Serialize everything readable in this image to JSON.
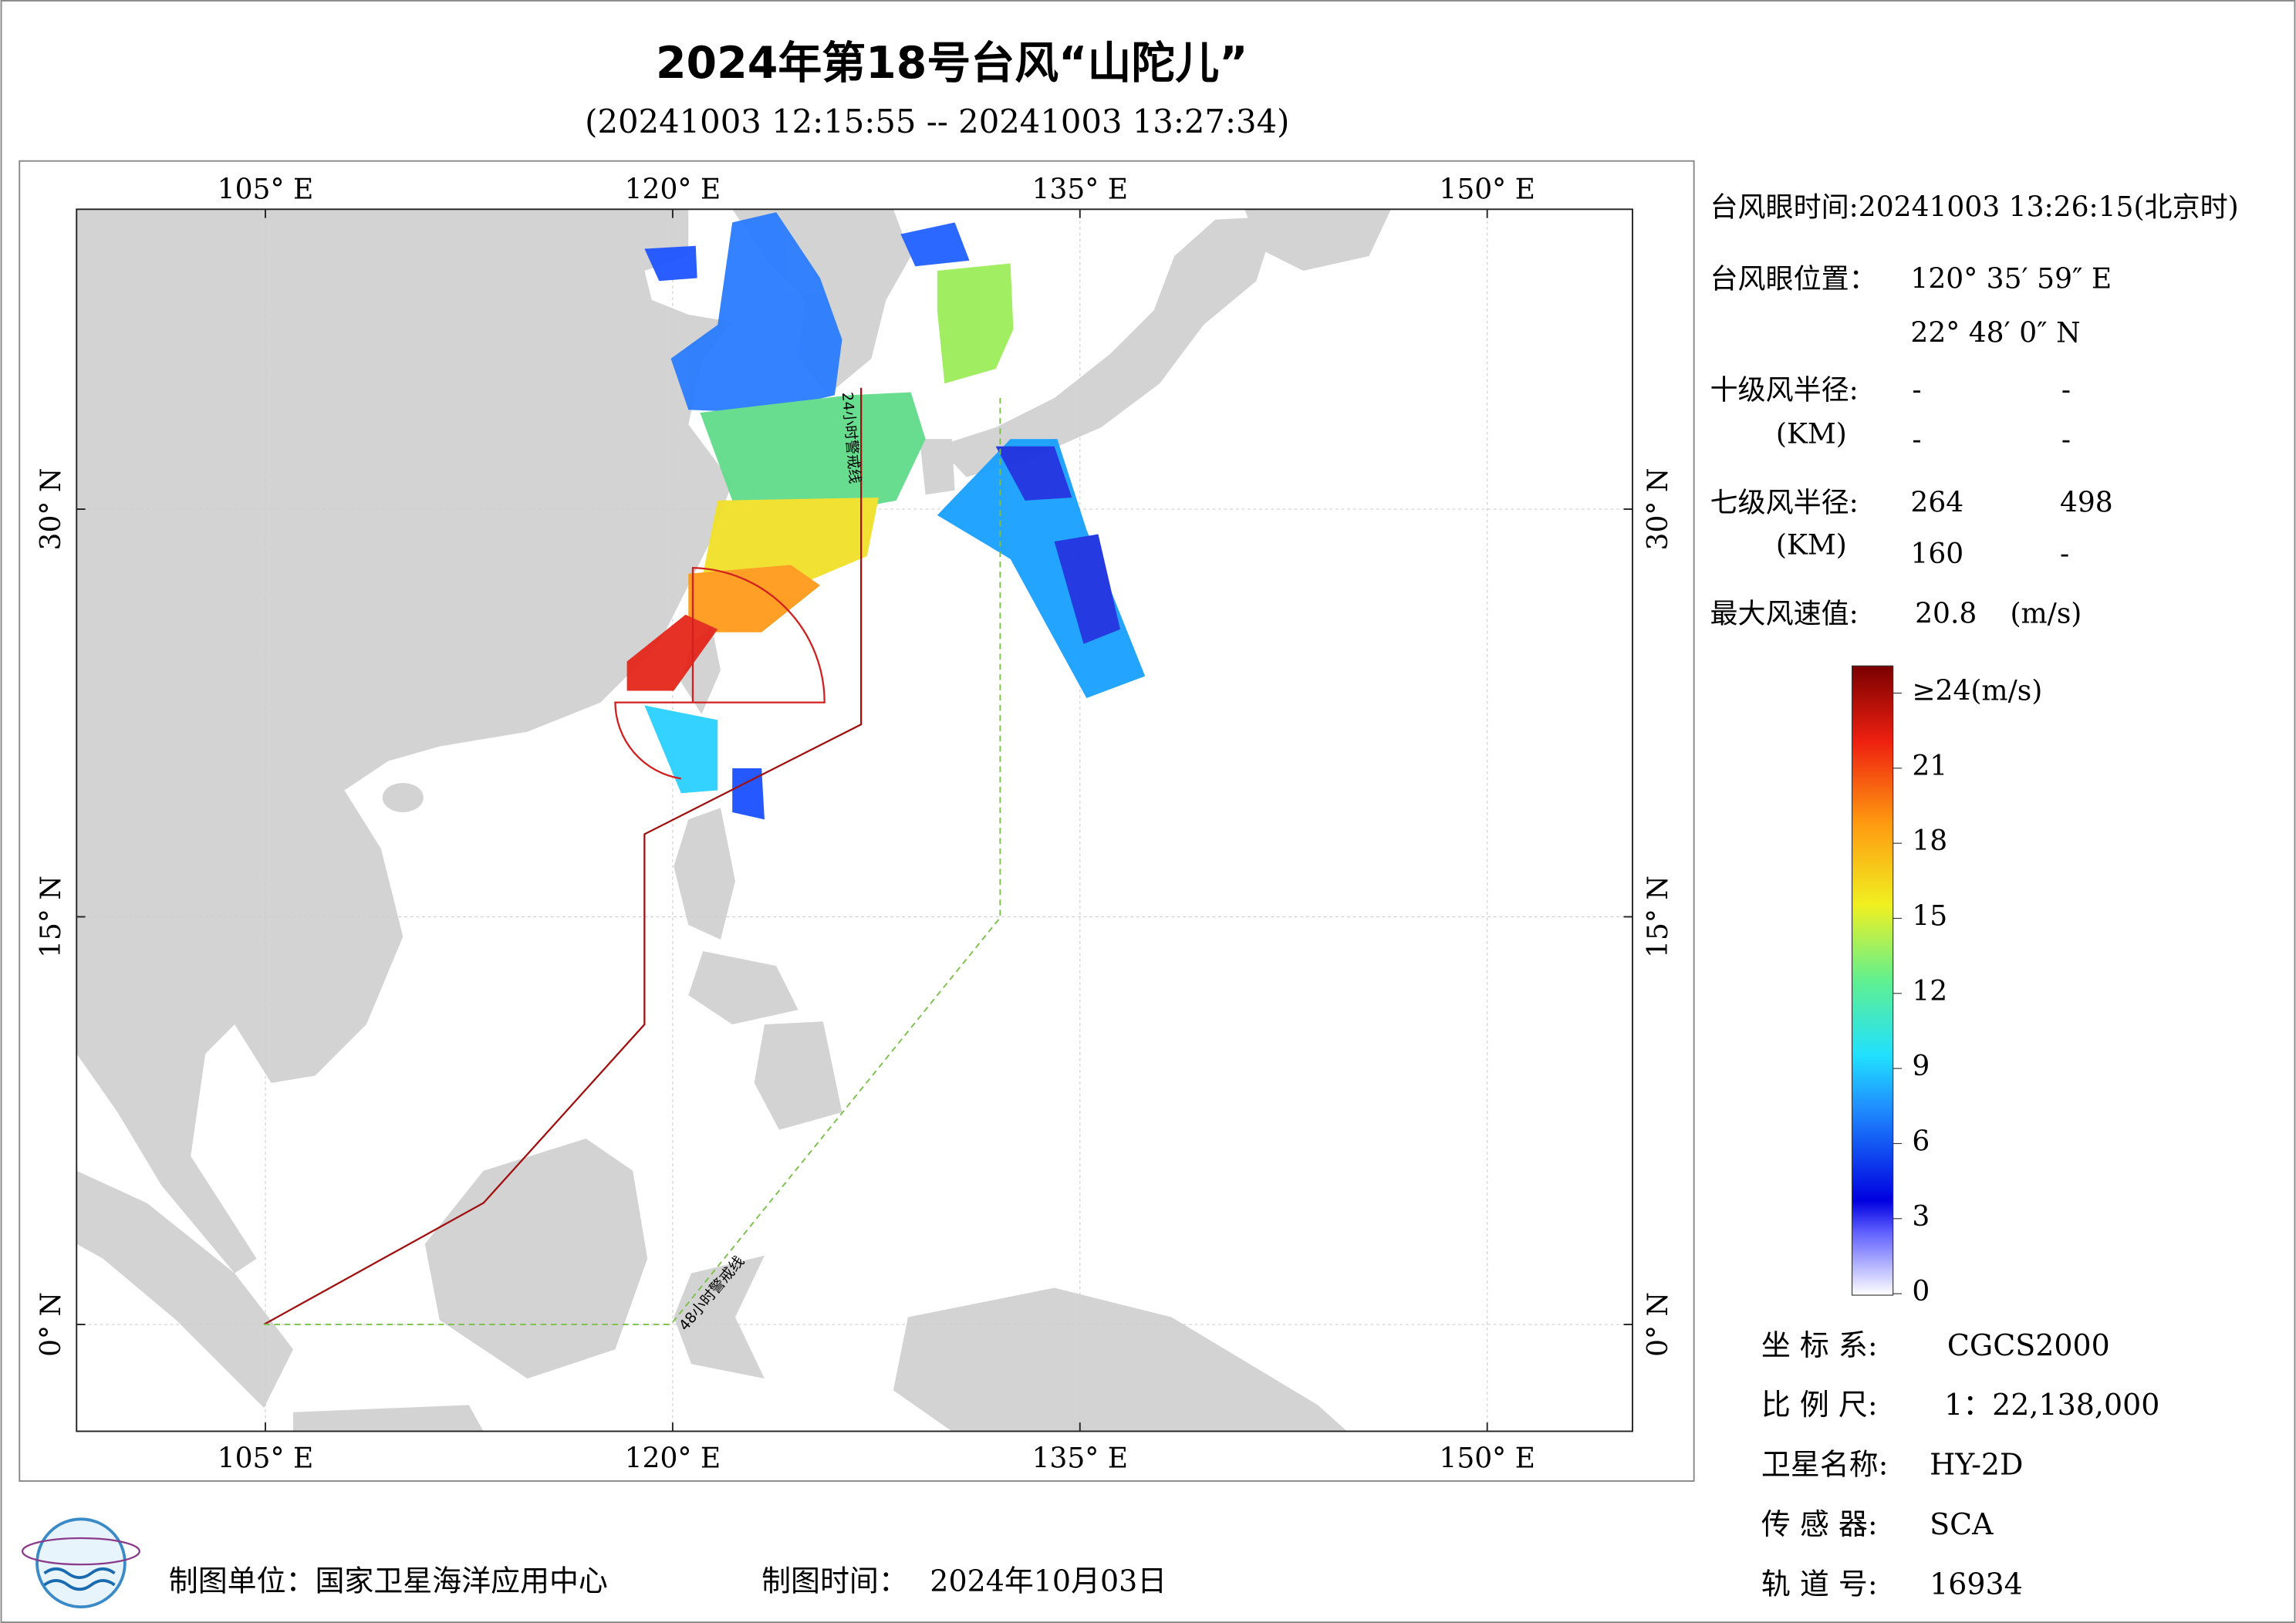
{
  "header": {
    "title": "2024年第18号台风“山陀儿”",
    "subtitle": "(20241003 12:15:55 -- 20241003 13:27:34)"
  },
  "map": {
    "lon_ticks": [
      {
        "value": 105,
        "label": "105° E"
      },
      {
        "value": 120,
        "label": "120° E"
      },
      {
        "value": 135,
        "label": "135° E"
      },
      {
        "value": 150,
        "label": "150° E"
      }
    ],
    "lat_ticks": [
      {
        "value": 0,
        "label": "0° N"
      },
      {
        "value": 15,
        "label": "15° N"
      },
      {
        "value": 30,
        "label": "30° N"
      }
    ],
    "warning_lines": {
      "h24": "24小时警戒线",
      "h48": "48小时警戒线"
    }
  },
  "info": {
    "eye_time": "台风眼时间:20241003 13:26:15(北京时)",
    "eye_position_label": "台风眼位置：",
    "eye_lon": "120° 35′ 59″ E",
    "eye_lat": "22° 48′ 0″ N",
    "r10_label": "十级风半径:",
    "r10_unit": "(KM)",
    "r10": [
      "-",
      "-",
      "-",
      "-"
    ],
    "r7_label": "七级风半径:",
    "r7_unit": "(KM)",
    "r7": [
      264,
      498,
      160,
      "-"
    ],
    "max_wind_label": "最大风速值:",
    "max_wind": 20.8,
    "max_wind_unit": "(m/s)"
  },
  "colorbar": {
    "ticks": [
      {
        "value": 24,
        "label": "≥24(m/s)"
      },
      21,
      18,
      15,
      12,
      9,
      6,
      3,
      0
    ]
  },
  "meta": [
    {
      "label": "坐 标 系:",
      "value": "CGCS2000"
    },
    {
      "label": "比 例 尺:",
      "value": "1：22,138,000"
    },
    {
      "label": "卫星名称:",
      "value": "HY-2D"
    },
    {
      "label": "传 感 器:",
      "value": "SCA"
    },
    {
      "label": "轨 道 号:",
      "value": 16934
    }
  ],
  "footer": {
    "unit": "制图单位：国家卫星海洋应用中心",
    "time_label": "制图时间：",
    "time": "2024年10月03日"
  }
}
